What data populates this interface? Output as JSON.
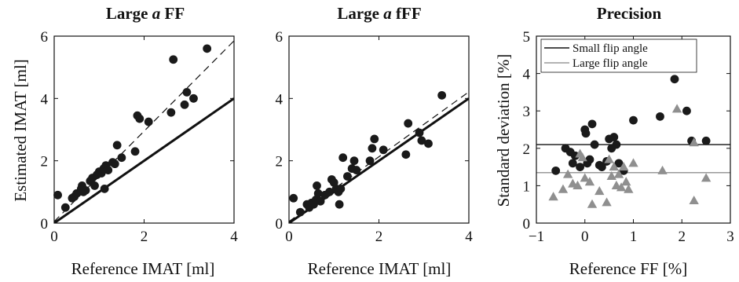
{
  "chart_data": [
    {
      "type": "scatter",
      "title_parts": {
        "pre": "Large ",
        "italic": "a",
        "post": " FF"
      },
      "xlabel": "Reference IMAT [ml]",
      "ylabel": "Estimated IMAT [ml]",
      "xlim": [
        0,
        4
      ],
      "ylim": [
        0,
        6
      ],
      "xticks": [
        0,
        2,
        4
      ],
      "yticks": [
        0,
        2,
        4,
        6
      ],
      "grid": false,
      "reference_lines": [
        {
          "style": "solid-thick",
          "slope": 1,
          "intercept": 0
        },
        {
          "style": "dashed",
          "slope": 1.45,
          "intercept": 0.05
        }
      ],
      "series": [
        {
          "marker": "circle",
          "color": "#1a1a1a",
          "points": [
            [
              0.08,
              0.9
            ],
            [
              0.25,
              0.5
            ],
            [
              0.4,
              0.8
            ],
            [
              0.45,
              0.85
            ],
            [
              0.5,
              0.95
            ],
            [
              0.6,
              1.1
            ],
            [
              0.62,
              1.2
            ],
            [
              0.65,
              1.0
            ],
            [
              0.7,
              1.05
            ],
            [
              0.8,
              1.35
            ],
            [
              0.85,
              1.45
            ],
            [
              0.9,
              1.2
            ],
            [
              0.95,
              1.55
            ],
            [
              1.0,
              1.65
            ],
            [
              1.05,
              1.6
            ],
            [
              1.1,
              1.75
            ],
            [
              1.12,
              1.1
            ],
            [
              1.15,
              1.85
            ],
            [
              1.2,
              1.7
            ],
            [
              1.3,
              1.95
            ],
            [
              1.35,
              1.9
            ],
            [
              1.4,
              2.5
            ],
            [
              1.5,
              2.1
            ],
            [
              1.8,
              2.3
            ],
            [
              1.85,
              3.45
            ],
            [
              1.9,
              3.35
            ],
            [
              2.1,
              3.25
            ],
            [
              2.6,
              3.55
            ],
            [
              2.65,
              5.25
            ],
            [
              2.9,
              3.8
            ],
            [
              2.95,
              4.2
            ],
            [
              3.1,
              4.0
            ],
            [
              3.4,
              5.6
            ]
          ]
        }
      ]
    },
    {
      "type": "scatter",
      "title_parts": {
        "pre": "Large ",
        "italic": "a",
        "post": " fFF"
      },
      "xlabel": "Reference IMAT [ml]",
      "ylabel": "",
      "xlim": [
        0,
        4
      ],
      "ylim": [
        0,
        6
      ],
      "xticks": [
        0,
        2,
        4
      ],
      "yticks": [
        0,
        2,
        4,
        6
      ],
      "grid": false,
      "reference_lines": [
        {
          "style": "solid-thick",
          "slope": 1,
          "intercept": 0
        },
        {
          "style": "dashed",
          "slope": 1.04,
          "intercept": 0.05
        }
      ],
      "series": [
        {
          "marker": "circle",
          "color": "#1a1a1a",
          "points": [
            [
              0.1,
              0.8
            ],
            [
              0.25,
              0.35
            ],
            [
              0.4,
              0.6
            ],
            [
              0.45,
              0.5
            ],
            [
              0.5,
              0.65
            ],
            [
              0.55,
              0.6
            ],
            [
              0.6,
              0.75
            ],
            [
              0.62,
              1.2
            ],
            [
              0.65,
              0.95
            ],
            [
              0.7,
              0.7
            ],
            [
              0.8,
              0.9
            ],
            [
              0.9,
              1.0
            ],
            [
              0.95,
              1.4
            ],
            [
              1.0,
              1.3
            ],
            [
              1.05,
              1.1
            ],
            [
              1.1,
              1.0
            ],
            [
              1.12,
              0.6
            ],
            [
              1.15,
              1.1
            ],
            [
              1.2,
              2.1
            ],
            [
              1.3,
              1.5
            ],
            [
              1.4,
              1.75
            ],
            [
              1.45,
              2.0
            ],
            [
              1.5,
              1.7
            ],
            [
              1.8,
              2.0
            ],
            [
              1.85,
              2.4
            ],
            [
              1.9,
              2.7
            ],
            [
              2.1,
              2.35
            ],
            [
              2.6,
              2.2
            ],
            [
              2.65,
              3.2
            ],
            [
              2.9,
              2.9
            ],
            [
              2.95,
              2.65
            ],
            [
              3.1,
              2.55
            ],
            [
              3.4,
              4.1
            ]
          ]
        }
      ]
    },
    {
      "type": "scatter",
      "title": "Precision",
      "xlabel": "Reference FF [%]",
      "ylabel": "Standard deviation [%]",
      "xlim": [
        -1,
        3
      ],
      "ylim": [
        0,
        5
      ],
      "xticks": [
        -1,
        0,
        1,
        2,
        3
      ],
      "yticks": [
        0,
        1,
        2,
        3,
        4,
        5
      ],
      "grid": false,
      "legend": {
        "placement": "top",
        "entries": [
          {
            "label": "Small flip angle",
            "color": "#111111"
          },
          {
            "label": "Large flip angle",
            "color": "#9a9a9a"
          }
        ]
      },
      "horizontal_lines": [
        {
          "y": 2.1,
          "color": "#111111"
        },
        {
          "y": 1.35,
          "color": "#9a9a9a"
        }
      ],
      "series": [
        {
          "name": "Small flip angle",
          "marker": "circle",
          "color": "#1a1a1a",
          "points": [
            [
              -0.6,
              1.4
            ],
            [
              -0.4,
              2.0
            ],
            [
              -0.3,
              1.9
            ],
            [
              -0.25,
              1.6
            ],
            [
              -0.2,
              1.8
            ],
            [
              -0.1,
              1.5
            ],
            [
              0.0,
              2.5
            ],
            [
              0.02,
              2.4
            ],
            [
              0.05,
              1.6
            ],
            [
              0.1,
              1.7
            ],
            [
              0.15,
              2.65
            ],
            [
              0.2,
              2.1
            ],
            [
              0.3,
              1.55
            ],
            [
              0.35,
              1.5
            ],
            [
              0.45,
              1.65
            ],
            [
              0.5,
              2.25
            ],
            [
              0.55,
              2.0
            ],
            [
              0.6,
              2.3
            ],
            [
              0.65,
              2.1
            ],
            [
              0.7,
              1.6
            ],
            [
              0.8,
              1.4
            ],
            [
              1.0,
              2.75
            ],
            [
              1.55,
              2.85
            ],
            [
              1.85,
              3.85
            ],
            [
              2.1,
              3.0
            ],
            [
              2.2,
              2.2
            ],
            [
              2.5,
              2.2
            ]
          ]
        },
        {
          "name": "Large flip angle",
          "marker": "triangle",
          "color": "#8f8f8f",
          "points": [
            [
              -0.65,
              0.7
            ],
            [
              -0.45,
              0.9
            ],
            [
              -0.35,
              1.3
            ],
            [
              -0.25,
              1.05
            ],
            [
              -0.15,
              1.0
            ],
            [
              -0.1,
              1.85
            ],
            [
              -0.05,
              1.75
            ],
            [
              0.0,
              1.2
            ],
            [
              0.1,
              1.1
            ],
            [
              0.15,
              0.5
            ],
            [
              0.3,
              0.85
            ],
            [
              0.45,
              0.55
            ],
            [
              0.5,
              1.7
            ],
            [
              0.55,
              1.25
            ],
            [
              0.6,
              1.5
            ],
            [
              0.65,
              1.0
            ],
            [
              0.7,
              1.3
            ],
            [
              0.75,
              0.95
            ],
            [
              0.8,
              1.5
            ],
            [
              0.85,
              1.1
            ],
            [
              0.9,
              0.9
            ],
            [
              1.0,
              1.6
            ],
            [
              1.6,
              1.4
            ],
            [
              1.9,
              3.05
            ],
            [
              2.25,
              2.15
            ],
            [
              2.25,
              0.6
            ],
            [
              2.5,
              1.2
            ]
          ]
        }
      ]
    }
  ]
}
